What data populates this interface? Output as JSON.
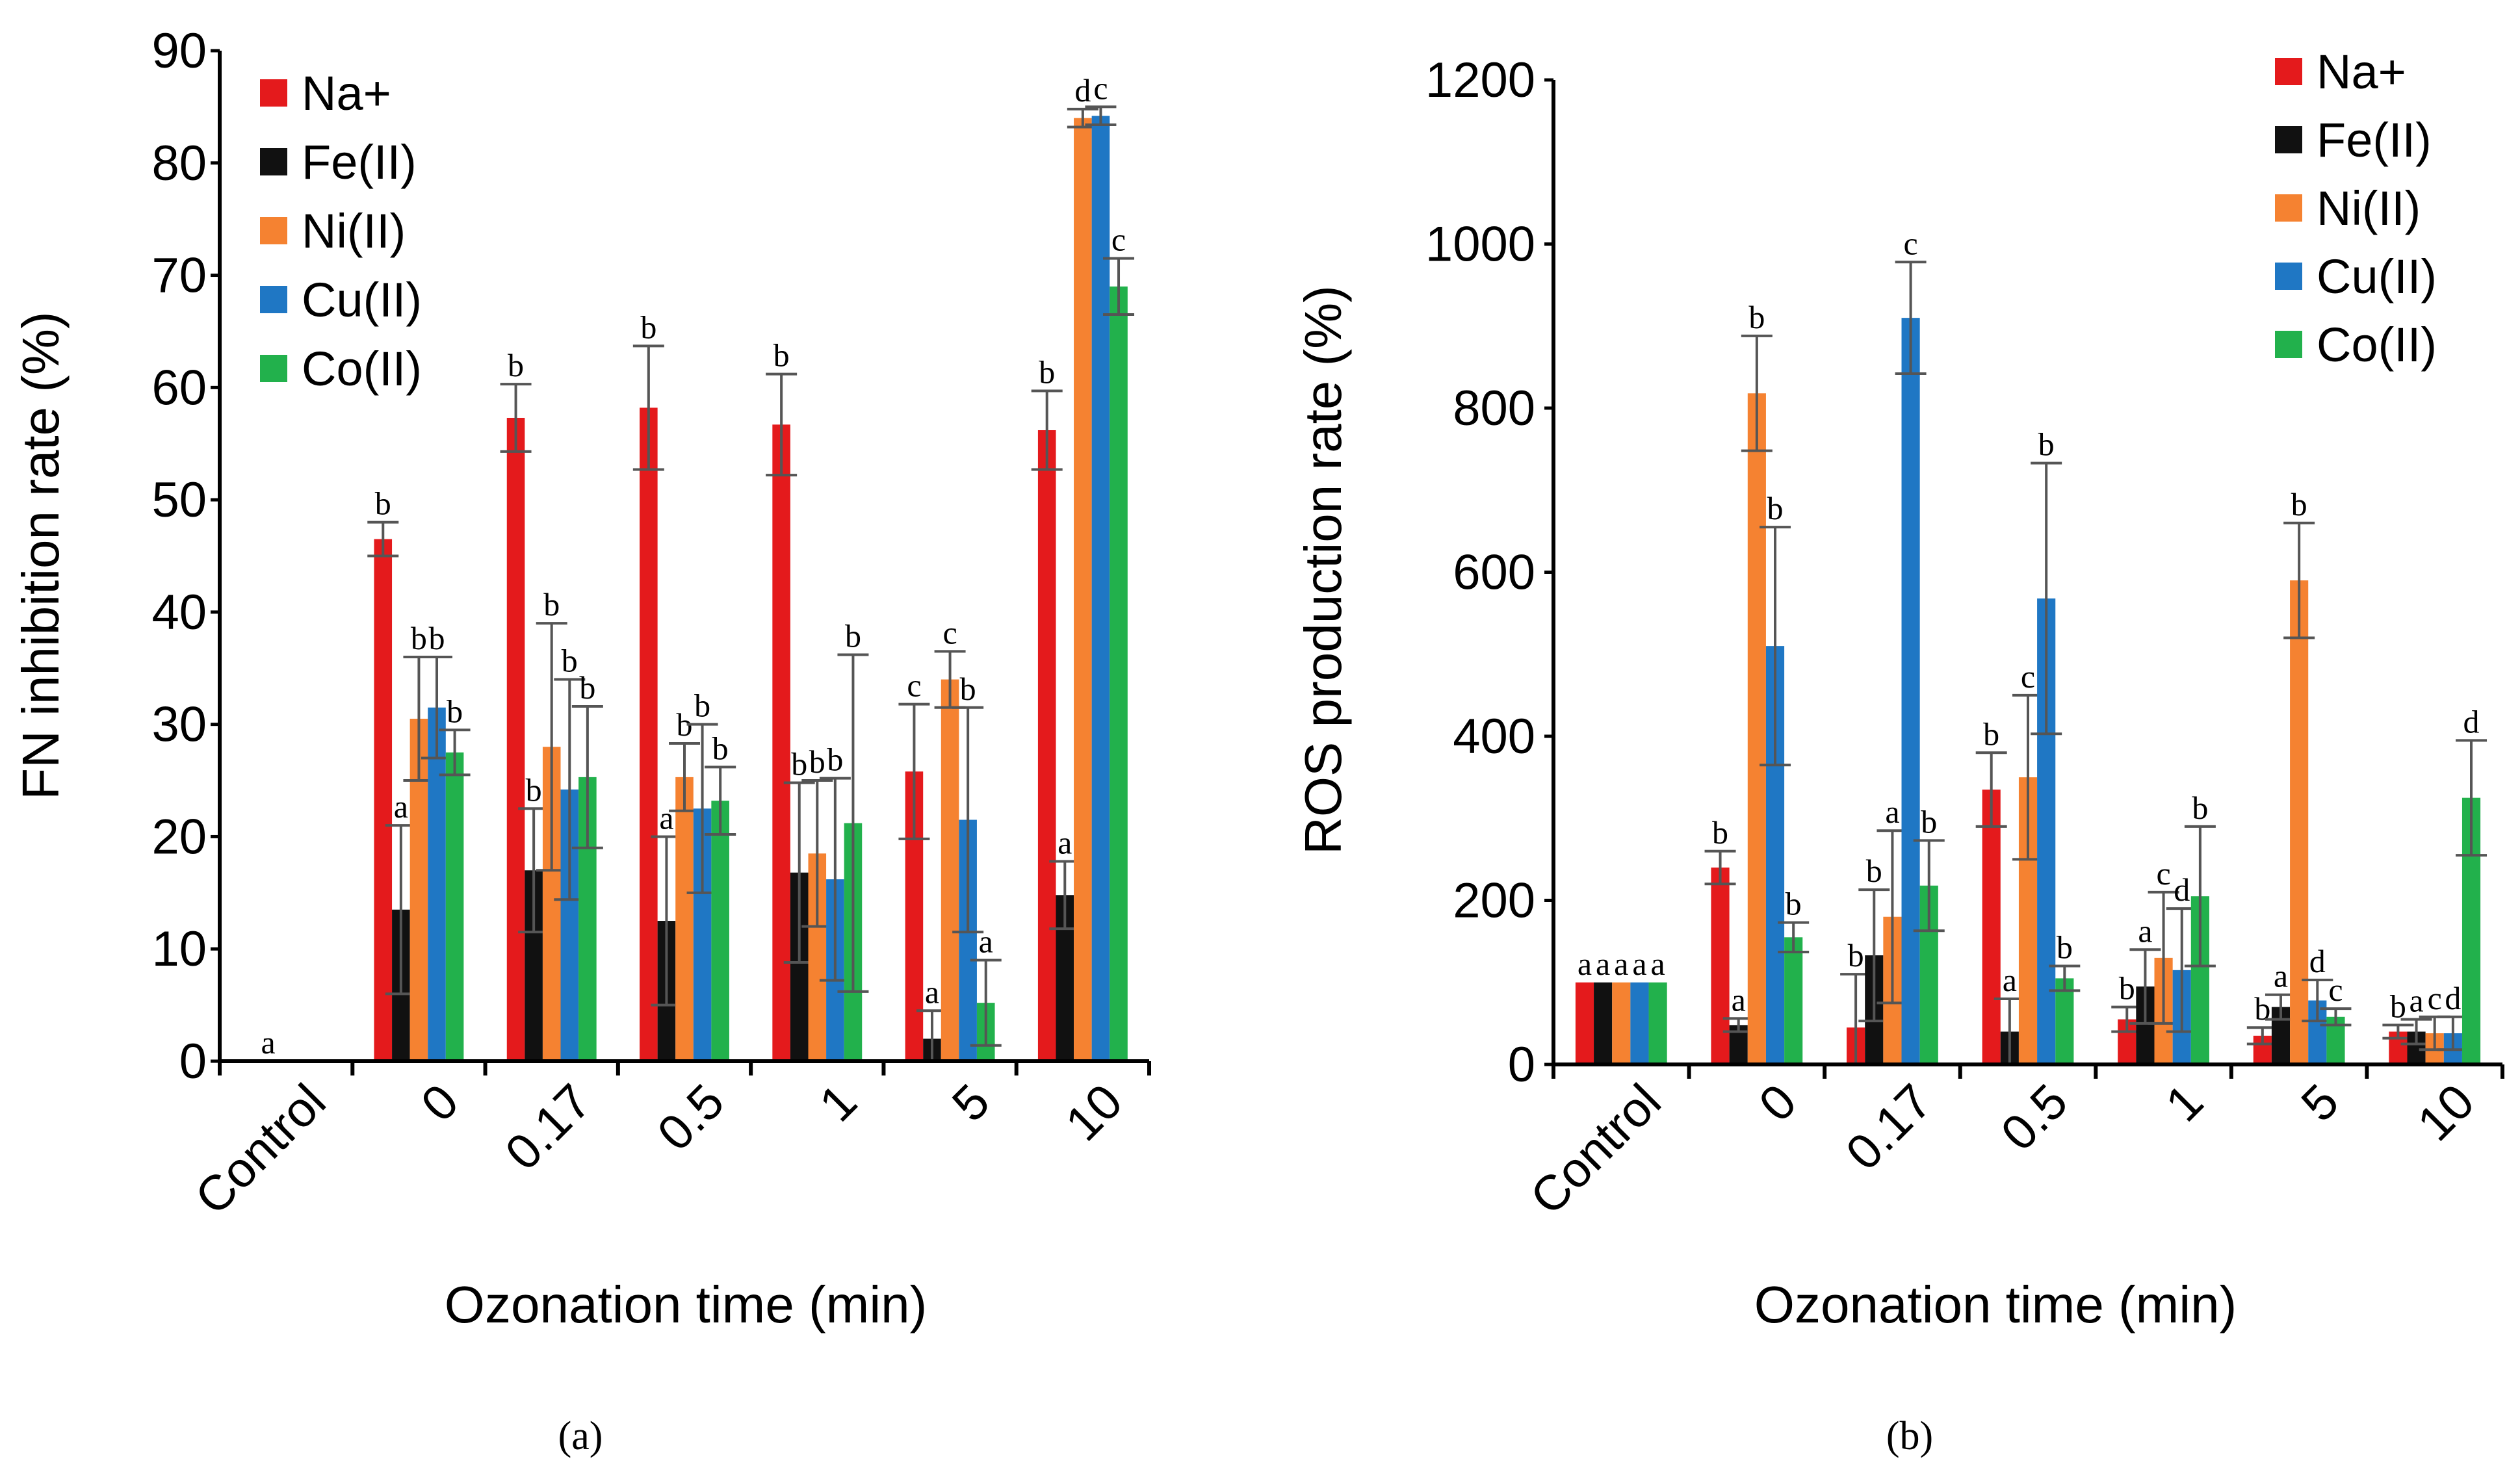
{
  "colors": {
    "Na+": "#e41a1c",
    "Fe(II)": "#111111",
    "Ni(II)": "#f58231",
    "Cu(II)": "#1f77c4",
    "Co(II)": "#22b14c"
  },
  "chart_data": [
    {
      "type": "bar",
      "panel_label": "(a)",
      "xlabel": "Ozonation time (min)",
      "ylabel": "FN inhibition rate (%)",
      "ylim": [
        0,
        90
      ],
      "yticks": [
        0,
        10,
        20,
        30,
        40,
        50,
        60,
        70,
        80,
        90
      ],
      "categories": [
        "Control",
        "0",
        "0.17",
        "0.5",
        "1",
        "5",
        "10"
      ],
      "legend_position": "top-left",
      "series": [
        {
          "name": "Na+",
          "values": [
            0,
            46.5,
            57.3,
            58.2,
            56.7,
            25.8,
            56.2
          ],
          "errors": [
            0,
            1.5,
            3,
            5.5,
            4.5,
            6,
            3.5
          ],
          "labels": [
            "",
            "b",
            "b",
            "b",
            "b",
            "c",
            "b"
          ]
        },
        {
          "name": "Fe(II)",
          "values": [
            0,
            13.5,
            17,
            12.5,
            16.8,
            2,
            14.8
          ],
          "errors": [
            0,
            7.5,
            5.5,
            7.5,
            8,
            2.5,
            3
          ],
          "labels": [
            "a",
            "a",
            "b",
            "a",
            "b",
            "a",
            "a"
          ]
        },
        {
          "name": "Ni(II)",
          "values": [
            0,
            30.5,
            28,
            25.3,
            18.5,
            34,
            84
          ],
          "errors": [
            0,
            5.5,
            11,
            3,
            6.5,
            2.5,
            0.8
          ],
          "labels": [
            "",
            "b",
            "b",
            "b",
            "b",
            "c",
            "d"
          ]
        },
        {
          "name": "Cu(II)",
          "values": [
            0,
            31.5,
            24.2,
            22.5,
            16.2,
            21.5,
            84.2
          ],
          "errors": [
            0,
            4.5,
            9.8,
            7.5,
            9,
            10,
            0.8
          ],
          "labels": [
            "",
            "b",
            "b",
            "b",
            "b",
            "b",
            "c"
          ]
        },
        {
          "name": "Co(II)",
          "values": [
            0,
            27.5,
            25.3,
            23.2,
            21.2,
            5.2,
            69
          ],
          "errors": [
            0,
            2,
            6.3,
            3,
            15,
            3.8,
            2.5
          ],
          "labels": [
            "",
            "b",
            "b",
            "b",
            "b",
            "a",
            "c"
          ]
        }
      ]
    },
    {
      "type": "bar",
      "panel_label": "(b)",
      "xlabel": "Ozonation time (min)",
      "ylabel": "ROS production rate (%)",
      "ylim": [
        0,
        1200
      ],
      "yticks": [
        0,
        200,
        400,
        600,
        800,
        1000,
        1200
      ],
      "categories": [
        "Control",
        "0",
        "0.17",
        "0.5",
        "1",
        "5",
        "10"
      ],
      "legend_position": "top-right",
      "series": [
        {
          "name": "Na+",
          "values": [
            100,
            240,
            45,
            335,
            55,
            35,
            40
          ],
          "errors": [
            0,
            20,
            65,
            45,
            15,
            10,
            8
          ],
          "labels": [
            "a",
            "b",
            "b",
            "b",
            "b",
            "b",
            "b"
          ]
        },
        {
          "name": "Fe(II)",
          "values": [
            100,
            48,
            133,
            40,
            95,
            70,
            40
          ],
          "errors": [
            0,
            8,
            80,
            40,
            45,
            15,
            15
          ],
          "labels": [
            "a",
            "a",
            "b",
            "a",
            "a",
            "a",
            "a"
          ]
        },
        {
          "name": "Ni(II)",
          "values": [
            100,
            818,
            180,
            350,
            130,
            590,
            38
          ],
          "errors": [
            0,
            70,
            105,
            100,
            80,
            70,
            20
          ],
          "labels": [
            "a",
            "b",
            "a",
            "c",
            "c",
            "b",
            "c"
          ]
        },
        {
          "name": "Cu(II)",
          "values": [
            100,
            510,
            910,
            568,
            115,
            78,
            38
          ],
          "errors": [
            0,
            145,
            68,
            165,
            75,
            25,
            20
          ],
          "labels": [
            "a",
            "b",
            "c",
            "b",
            "d",
            "d",
            "d"
          ]
        },
        {
          "name": "Co(II)",
          "values": [
            100,
            155,
            218,
            105,
            205,
            58,
            325
          ],
          "errors": [
            0,
            18,
            55,
            15,
            85,
            10,
            70
          ],
          "labels": [
            "a",
            "b",
            "b",
            "b",
            "b",
            "c",
            "d"
          ]
        }
      ]
    }
  ]
}
